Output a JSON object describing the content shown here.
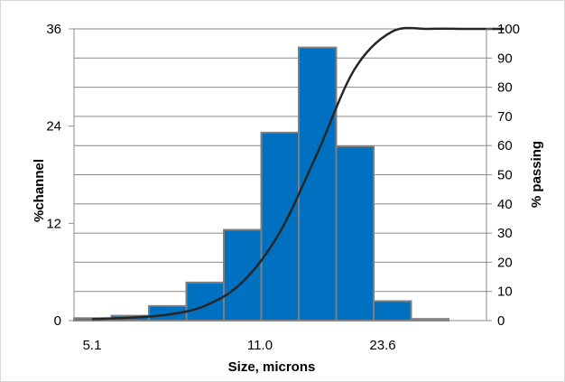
{
  "chart_data": {
    "type": "bar",
    "title": "",
    "xlabel": "Size, microns",
    "ylabel": "%channel",
    "y2label": "% passing",
    "x_tick_labels": [
      "5.1",
      "11.0",
      "23.6"
    ],
    "y_ticks": [
      0,
      12,
      24,
      36
    ],
    "ylim": [
      0,
      36
    ],
    "y2_ticks": [
      0,
      10,
      20,
      30,
      40,
      50,
      60,
      70,
      80,
      90,
      100
    ],
    "y2lim": [
      0,
      100
    ],
    "grid": true,
    "legend": "none",
    "bar_color": "#0070c0",
    "bar_edge_color": "#7f7f7f",
    "line_color": "#262626",
    "series": [
      {
        "type": "bar",
        "axis": "left",
        "values": [
          0.3,
          0.6,
          1.8,
          4.7,
          11.2,
          23.2,
          33.7,
          21.5,
          2.4,
          0.2
        ]
      },
      {
        "type": "line",
        "axis": "right",
        "values": [
          0.5,
          1.0,
          2.0,
          5.0,
          13.0,
          30.0,
          57.0,
          86.0,
          99.0,
          100.0,
          100.0,
          100.0
        ]
      }
    ]
  }
}
